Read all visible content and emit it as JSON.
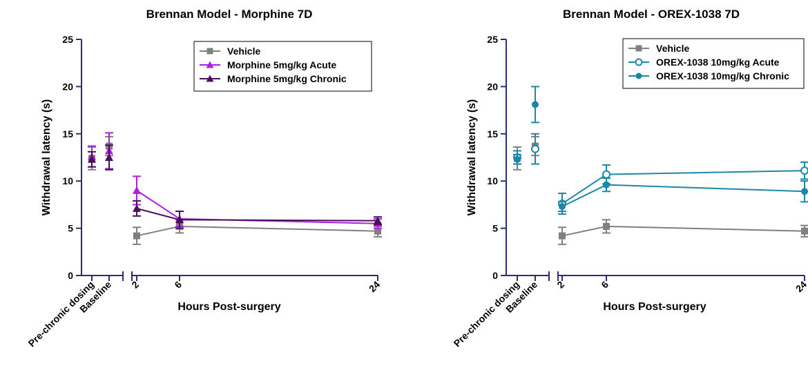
{
  "chart_data": [
    {
      "type": "line",
      "title": "Brennan Model - Morphine 7D",
      "xlabel": "Hours Post-surgery",
      "ylabel": "Withdrawal latency  (s)",
      "ylim": [
        0,
        25
      ],
      "yticks": [
        0,
        5,
        10,
        15,
        20,
        25
      ],
      "categories": [
        "Pre-chronic dosing",
        "Baseline"
      ],
      "x": [
        2,
        6,
        24
      ],
      "legend_position": "top-right",
      "series": [
        {
          "name": "Vehicle",
          "color": "#808080",
          "marker": "square-filled",
          "cat_values": [
            12.4,
            13.7
          ],
          "cat_err": [
            1.2,
            1.0
          ],
          "values": [
            4.2,
            5.2,
            4.7
          ],
          "err": [
            0.9,
            0.7,
            0.6
          ]
        },
        {
          "name": "Morphine 5mg/kg Acute",
          "color": "#b01fe0",
          "marker": "triangle-filled",
          "cat_values": [
            12.6,
            13.2
          ],
          "cat_err": [
            1.1,
            1.9
          ],
          "values": [
            9.0,
            6.0,
            5.5
          ],
          "err": [
            1.5,
            0.8,
            0.5
          ]
        },
        {
          "name": "Morphine 5mg/kg Chronic",
          "color": "#4a0f5c",
          "marker": "triangle-filled",
          "cat_values": [
            12.3,
            12.5
          ],
          "cat_err": [
            0.8,
            1.3
          ],
          "values": [
            7.1,
            5.9,
            5.8
          ],
          "err": [
            0.8,
            0.9,
            0.4
          ]
        }
      ]
    },
    {
      "type": "line",
      "title": "Brennan Model - OREX-1038 7D",
      "xlabel": "Hours Post-surgery",
      "ylabel": "Withdrawal latency  (s)",
      "ylim": [
        0,
        25
      ],
      "yticks": [
        0,
        5,
        10,
        15,
        20,
        25
      ],
      "categories": [
        "Pre-chronic dosing",
        "Baseline"
      ],
      "x": [
        2,
        6,
        24
      ],
      "legend_position": "top-right",
      "series": [
        {
          "name": "Vehicle",
          "color": "#808080",
          "marker": "square-filled",
          "cat_values": [
            12.4,
            13.7
          ],
          "cat_err": [
            1.2,
            1.0
          ],
          "values": [
            4.2,
            5.2,
            4.7
          ],
          "err": [
            0.9,
            0.7,
            0.6
          ]
        },
        {
          "name": "OREX-1038 10mg/kg Acute",
          "color": "#1a87a8",
          "marker": "circle-open",
          "cat_values": [
            12.5,
            13.4
          ],
          "cat_err": [
            0.7,
            1.6
          ],
          "values": [
            7.6,
            10.7,
            11.1
          ],
          "err": [
            1.1,
            1.0,
            0.9
          ]
        },
        {
          "name": "OREX-1038 10mg/kg Chronic",
          "color": "#1a87a8",
          "marker": "circle-filled",
          "cat_values": [
            12.3,
            18.1
          ],
          "cat_err": [
            0.5,
            1.9
          ],
          "values": [
            7.3,
            9.6,
            8.9
          ],
          "err": [
            0.5,
            0.7,
            1.1
          ]
        }
      ]
    }
  ]
}
